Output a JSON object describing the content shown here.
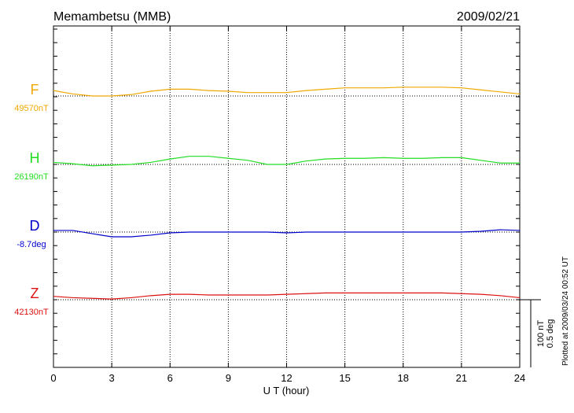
{
  "chart_data": {
    "type": "magnetogram",
    "title": "Memambetsu (MMB)",
    "date": "2009/02/21",
    "x_label": "U T (hour)",
    "note": "Plotted at 2009/03/24 00:52 UT",
    "xlim": [
      0,
      24
    ],
    "xticks": [
      0,
      3,
      6,
      9,
      12,
      15,
      18,
      21,
      24
    ],
    "grid": true,
    "scales": [
      {
        "value": 100,
        "label": "100 nT"
      },
      {
        "value": 0.5,
        "label": "0.5 deg"
      }
    ],
    "x": [
      0,
      1,
      2,
      3,
      4,
      5,
      6,
      7,
      8,
      9,
      10,
      11,
      12,
      13,
      14,
      15,
      16,
      17,
      18,
      19,
      20,
      21,
      22,
      23,
      24
    ],
    "series": [
      {
        "name": "F",
        "color": "#f0a800",
        "scale": 0,
        "baseline": {
          "value": 49570,
          "label": "49570nT"
        },
        "values": [
          49578,
          49573,
          49570,
          49570,
          49572,
          49577,
          49580,
          49580,
          49578,
          49577,
          49575,
          49575,
          49575,
          49578,
          49580,
          49582,
          49582,
          49582,
          49583,
          49583,
          49583,
          49582,
          49579,
          49576,
          49573
        ]
      },
      {
        "name": "H",
        "color": "#22dd22",
        "scale": 0,
        "baseline": {
          "value": 26190,
          "label": "26190nT"
        },
        "values": [
          26193,
          26191,
          26188,
          26189,
          26190,
          26193,
          26198,
          26202,
          26202,
          26199,
          26196,
          26190,
          26190,
          26195,
          26198,
          26199,
          26199,
          26200,
          26199,
          26199,
          26200,
          26200,
          26196,
          26192,
          26192
        ]
      },
      {
        "name": "D",
        "color": "#0000cc",
        "scale": 1,
        "baseline": {
          "value": -8.7,
          "label": "-8.7deg"
        },
        "values": [
          -8.688,
          -8.688,
          -8.712,
          -8.735,
          -8.735,
          -8.723,
          -8.706,
          -8.7,
          -8.7,
          -8.7,
          -8.7,
          -8.7,
          -8.706,
          -8.7,
          -8.7,
          -8.7,
          -8.7,
          -8.7,
          -8.7,
          -8.7,
          -8.7,
          -8.7,
          -8.694,
          -8.683,
          -8.688
        ]
      },
      {
        "name": "Z",
        "color": "#dd1111",
        "scale": 0,
        "baseline": {
          "value": 42130,
          "label": "42130nT"
        },
        "values": [
          42135,
          42133,
          42132,
          42131,
          42133,
          42136,
          42138,
          42138,
          42137,
          42137,
          42137,
          42137,
          42138,
          42139,
          42140,
          42140,
          42140,
          42140,
          42140,
          42140,
          42140,
          42139,
          42138,
          42136,
          42133
        ]
      }
    ]
  }
}
